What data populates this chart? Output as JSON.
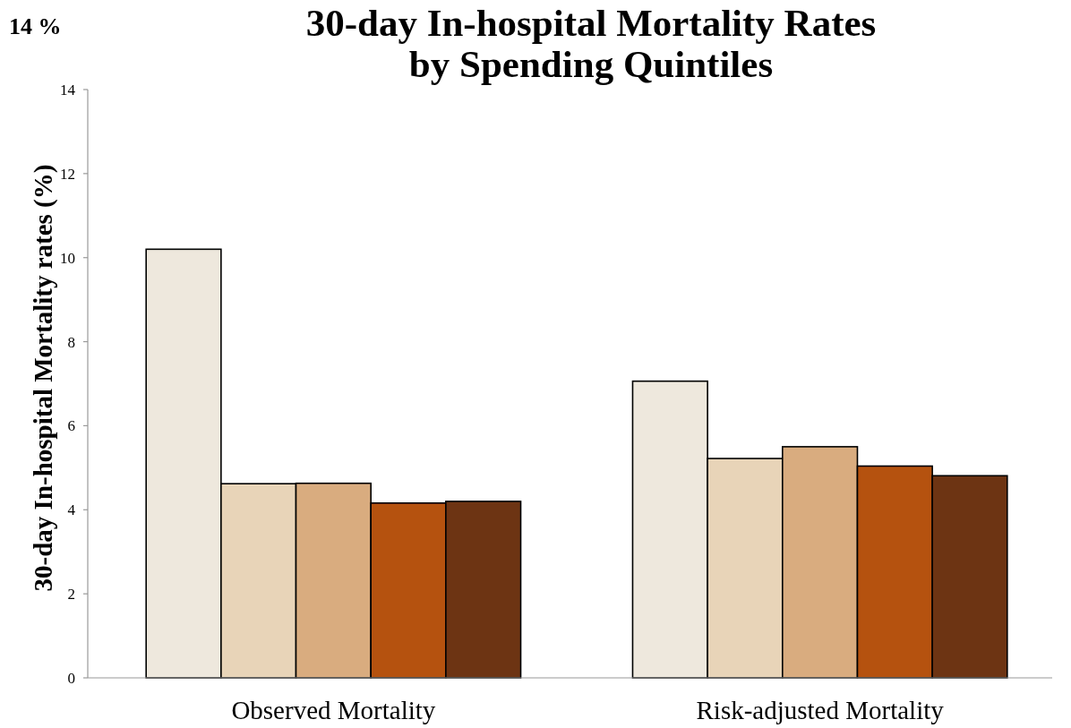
{
  "chart_data": {
    "type": "bar",
    "title": "30-day In-hospital Mortality Rates\nby Spending Quintiles",
    "ylabel": "30-day In-hospital Mortality rates (%)",
    "annotations": [
      "14 %"
    ],
    "categories": [
      "Observed Mortality",
      "Risk-adjusted Mortality"
    ],
    "series": [
      {
        "color": "#eee8dd",
        "values": [
          10.2,
          7.06
        ]
      },
      {
        "color": "#e8d4b8",
        "values": [
          4.62,
          5.22
        ]
      },
      {
        "color": "#d9ac7f",
        "values": [
          4.63,
          5.5
        ]
      },
      {
        "color": "#b5520f",
        "values": [
          4.16,
          5.04
        ]
      },
      {
        "color": "#6d3413",
        "values": [
          4.2,
          4.81
        ]
      }
    ],
    "ylim": [
      0,
      14
    ],
    "yticks": [
      0,
      2,
      4,
      6,
      8,
      10,
      12,
      14
    ],
    "grid": false
  }
}
